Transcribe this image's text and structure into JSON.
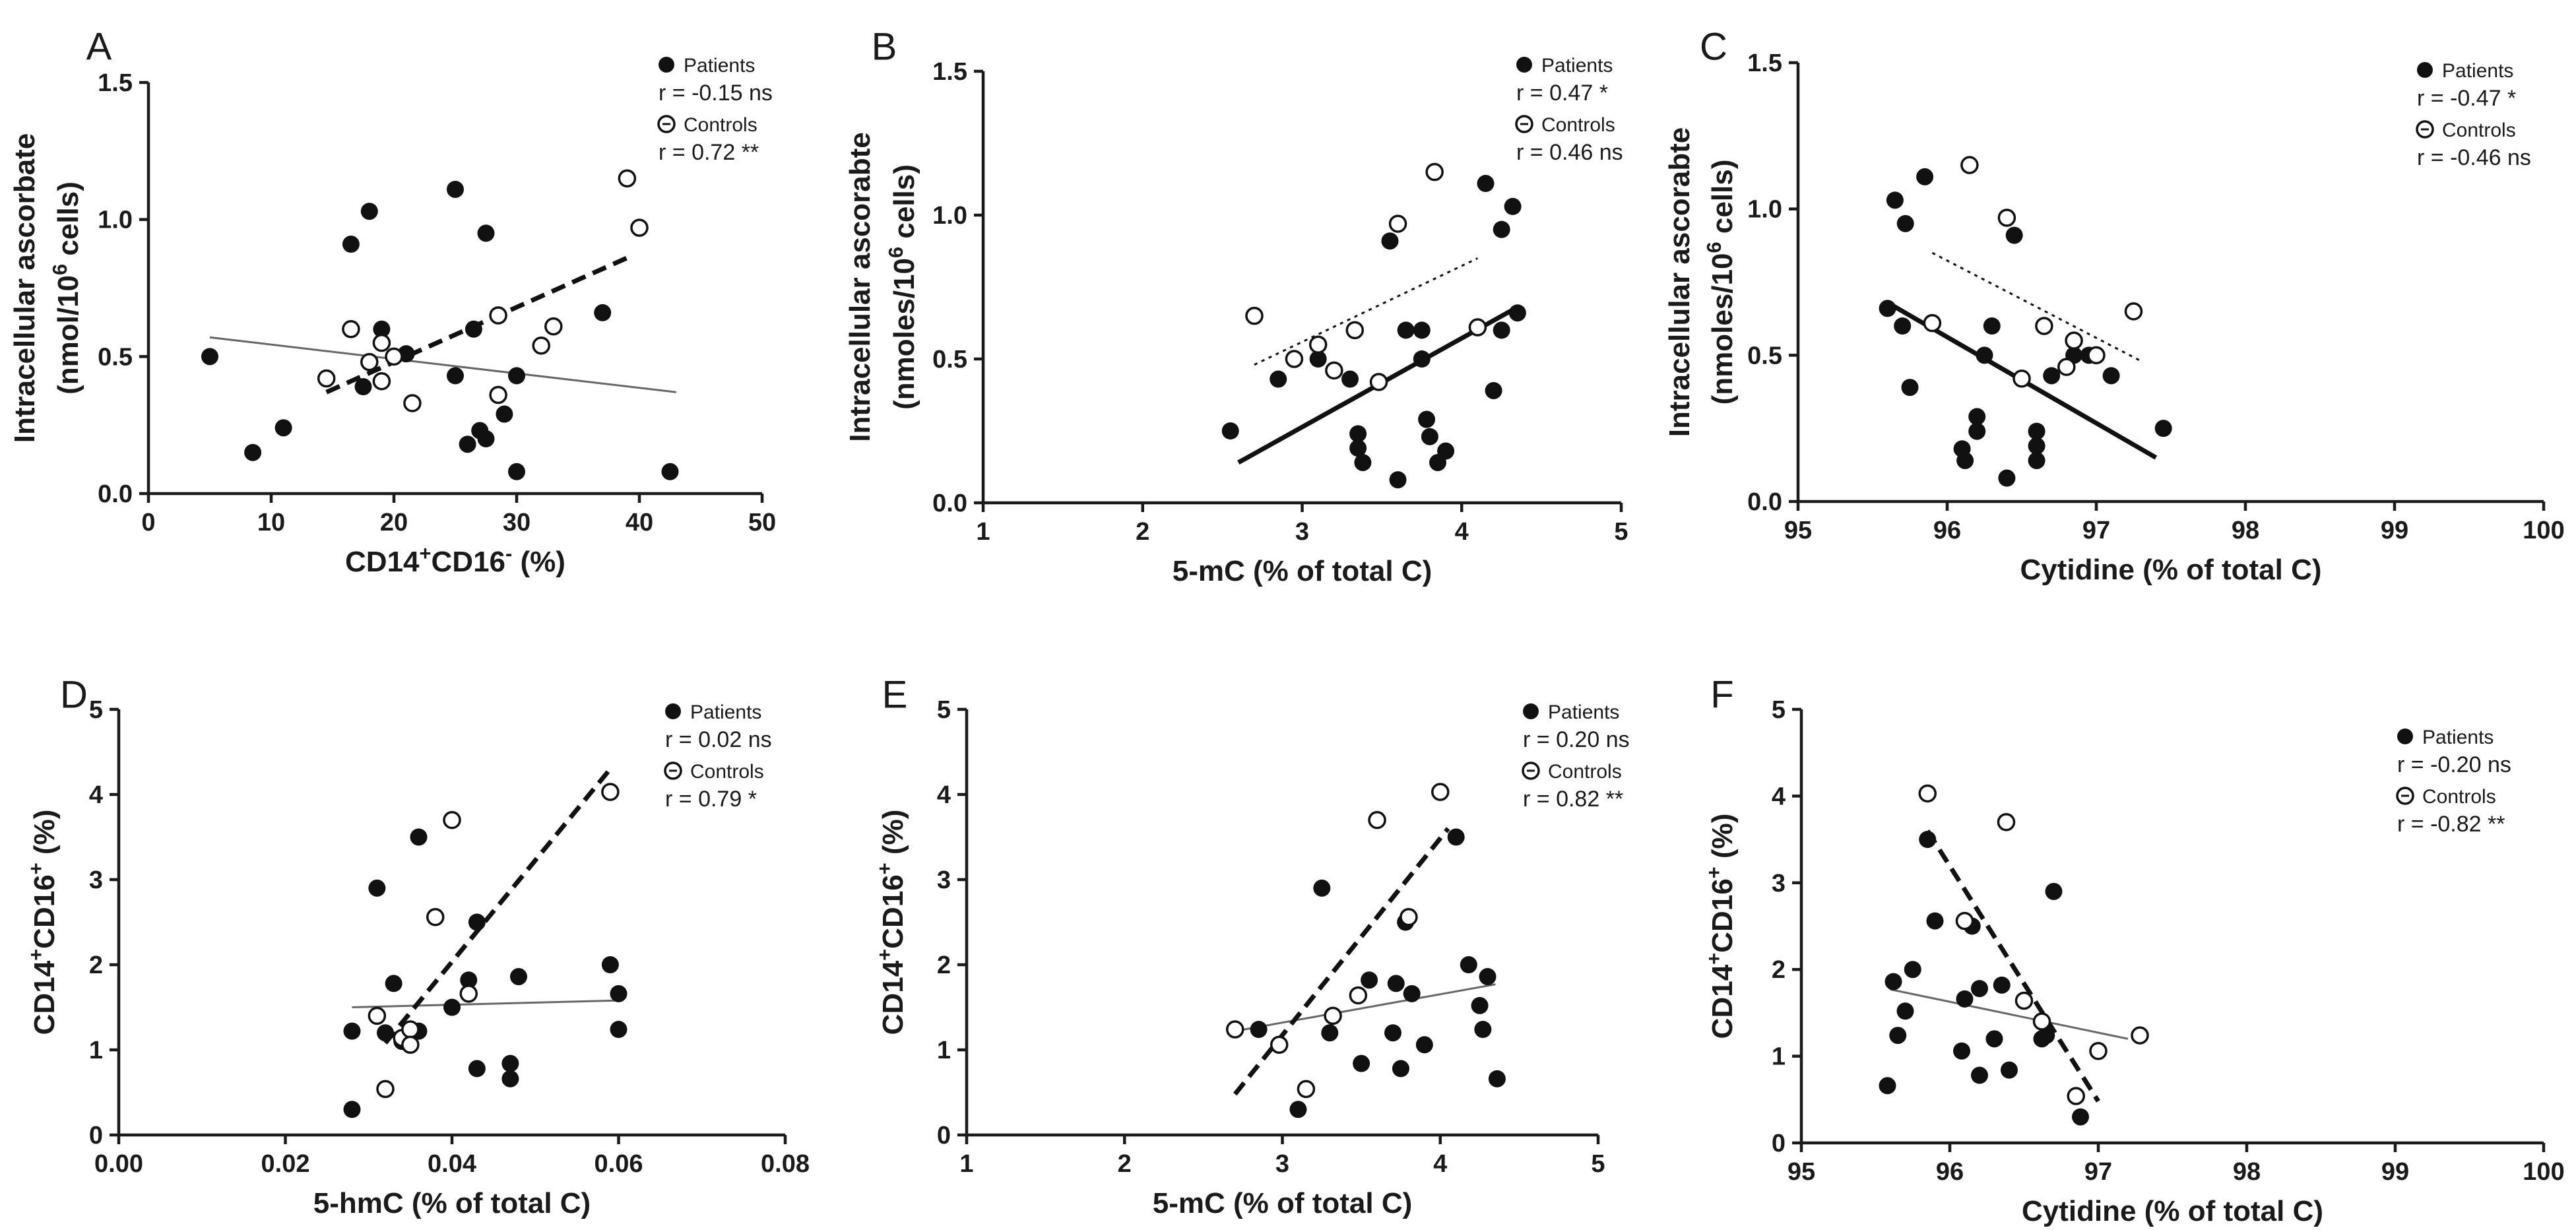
{
  "panels": [
    {
      "letter": "A",
      "xlabel": "CD14+CD16- (%)",
      "xlabel_parts": [
        [
          "CD14",
          ""
        ],
        [
          "+",
          "sup"
        ],
        [
          "CD16",
          ""
        ],
        [
          "-",
          "sup"
        ],
        [
          " (%)",
          ""
        ]
      ],
      "ylabel_line1": "Intracellular ascorbate",
      "ylabel_line2_parts": [
        [
          "(nmol/10",
          ""
        ],
        [
          "6",
          "sup"
        ],
        [
          " cells)",
          ""
        ]
      ],
      "xlim": [
        0,
        50
      ],
      "xticks": [
        0,
        10,
        20,
        30,
        40,
        50
      ],
      "xtick_labels": [
        "0",
        "10",
        "20",
        "30",
        "40",
        "50"
      ],
      "ylim": [
        0,
        1.5
      ],
      "yticks": [
        0.0,
        0.5,
        1.0,
        1.5
      ],
      "ytick_labels": [
        "0.0",
        "0.5",
        "1.0",
        "1.5"
      ],
      "legend": {
        "patients_label": "Patients",
        "patients_r": "r = -0.15 ns",
        "controls_label": "Controls",
        "controls_r": "r = 0.72 **"
      },
      "patients": [
        [
          5,
          0.5
        ],
        [
          8.5,
          0.15
        ],
        [
          11,
          0.24
        ],
        [
          16.5,
          0.91
        ],
        [
          17.5,
          0.39
        ],
        [
          18,
          1.03
        ],
        [
          19,
          0.6
        ],
        [
          21,
          0.51
        ],
        [
          25,
          0.43
        ],
        [
          25,
          1.11
        ],
        [
          26,
          0.18
        ],
        [
          26.5,
          0.6
        ],
        [
          27,
          0.23
        ],
        [
          27.5,
          0.2
        ],
        [
          27.5,
          0.95
        ],
        [
          29,
          0.29
        ],
        [
          30,
          0.43
        ],
        [
          30,
          0.08
        ],
        [
          37,
          0.66
        ],
        [
          42.5,
          0.08
        ]
      ],
      "controls": [
        [
          14.5,
          0.42
        ],
        [
          16.5,
          0.6
        ],
        [
          18,
          0.48
        ],
        [
          19,
          0.41
        ],
        [
          19,
          0.55
        ],
        [
          20,
          0.5
        ],
        [
          21.5,
          0.33
        ],
        [
          28.5,
          0.36
        ],
        [
          28.5,
          0.65
        ],
        [
          32,
          0.54
        ],
        [
          33,
          0.61
        ],
        [
          39,
          1.15
        ],
        [
          40,
          0.97
        ]
      ],
      "patients_fit": [
        [
          5,
          0.57
        ],
        [
          43,
          0.37
        ]
      ],
      "controls_fit": [
        [
          14.5,
          0.37
        ],
        [
          39,
          0.86
        ]
      ]
    },
    {
      "letter": "B",
      "xlabel": "5-mC (% of total C)",
      "xlabel_parts": [
        [
          "5-mC (% of total C)",
          ""
        ]
      ],
      "ylabel_line1": "Intracellular ascorabte",
      "ylabel_line2_parts": [
        [
          "(nmoles/10",
          ""
        ],
        [
          "6",
          "sup"
        ],
        [
          " cells)",
          ""
        ]
      ],
      "xlim": [
        1,
        5
      ],
      "xticks": [
        1,
        2,
        3,
        4,
        5
      ],
      "xtick_labels": [
        "1",
        "2",
        "3",
        "4",
        "5"
      ],
      "ylim": [
        0,
        1.5
      ],
      "yticks": [
        0.0,
        0.5,
        1.0,
        1.5
      ],
      "ytick_labels": [
        "0.0",
        "0.5",
        "1.0",
        "1.5"
      ],
      "legend": {
        "patients_label": "Patients",
        "patients_r": "r = 0.47 *",
        "controls_label": "Controls",
        "controls_r": "r = 0.46 ns"
      },
      "patients": [
        [
          2.55,
          0.25
        ],
        [
          2.85,
          0.43
        ],
        [
          3.1,
          0.5
        ],
        [
          3.3,
          0.43
        ],
        [
          3.35,
          0.24
        ],
        [
          3.35,
          0.19
        ],
        [
          3.38,
          0.14
        ],
        [
          3.55,
          0.91
        ],
        [
          3.6,
          0.08
        ],
        [
          3.65,
          0.6
        ],
        [
          3.75,
          0.6
        ],
        [
          3.75,
          0.5
        ],
        [
          3.78,
          0.29
        ],
        [
          3.8,
          0.23
        ],
        [
          3.85,
          0.14
        ],
        [
          3.9,
          0.18
        ],
        [
          4.15,
          1.11
        ],
        [
          4.2,
          0.39
        ],
        [
          4.25,
          0.95
        ],
        [
          4.25,
          0.6
        ],
        [
          4.32,
          1.03
        ],
        [
          4.35,
          0.66
        ]
      ],
      "controls": [
        [
          2.7,
          0.65
        ],
        [
          2.95,
          0.5
        ],
        [
          3.1,
          0.55
        ],
        [
          3.2,
          0.46
        ],
        [
          3.33,
          0.6
        ],
        [
          3.48,
          0.42
        ],
        [
          3.6,
          0.97
        ],
        [
          3.83,
          1.15
        ],
        [
          4.1,
          0.61
        ]
      ],
      "patients_fit": [
        [
          2.6,
          0.14
        ],
        [
          4.35,
          0.68
        ]
      ],
      "controls_fit": [
        [
          2.7,
          0.48
        ],
        [
          4.1,
          0.85
        ]
      ]
    },
    {
      "letter": "C",
      "xlabel": "Cytidine (% of total C)",
      "xlabel_parts": [
        [
          "Cytidine (% of total C)",
          ""
        ]
      ],
      "ylabel_line1": "Intracellular ascorabte",
      "ylabel_line2_parts": [
        [
          "(nmoles/10",
          ""
        ],
        [
          "6",
          "sup"
        ],
        [
          " cells)",
          ""
        ]
      ],
      "xlim": [
        95,
        100
      ],
      "xticks": [
        95,
        96,
        97,
        98,
        99,
        100
      ],
      "xtick_labels": [
        "95",
        "96",
        "97",
        "98",
        "99",
        "100"
      ],
      "ylim": [
        0,
        1.5
      ],
      "yticks": [
        0.0,
        0.5,
        1.0,
        1.5
      ],
      "ytick_labels": [
        "0.0",
        "0.5",
        "1.0",
        "1.5"
      ],
      "legend": {
        "patients_label": "Patients",
        "patients_r": "r = -0.47 *",
        "controls_label": "Controls",
        "controls_r": "r = -0.46 ns"
      },
      "patients": [
        [
          95.6,
          0.66
        ],
        [
          95.65,
          1.03
        ],
        [
          95.7,
          0.6
        ],
        [
          95.72,
          0.95
        ],
        [
          95.75,
          0.39
        ],
        [
          95.85,
          1.11
        ],
        [
          96.1,
          0.18
        ],
        [
          96.12,
          0.14
        ],
        [
          96.2,
          0.24
        ],
        [
          96.2,
          0.29
        ],
        [
          96.25,
          0.5
        ],
        [
          96.3,
          0.6
        ],
        [
          96.4,
          0.08
        ],
        [
          96.45,
          0.91
        ],
        [
          96.6,
          0.24
        ],
        [
          96.6,
          0.19
        ],
        [
          96.6,
          0.14
        ],
        [
          96.7,
          0.43
        ],
        [
          96.85,
          0.5
        ],
        [
          96.95,
          0.5
        ],
        [
          97.1,
          0.43
        ],
        [
          97.45,
          0.25
        ]
      ],
      "controls": [
        [
          95.9,
          0.61
        ],
        [
          96.15,
          1.15
        ],
        [
          96.4,
          0.97
        ],
        [
          96.5,
          0.42
        ],
        [
          96.65,
          0.6
        ],
        [
          96.8,
          0.46
        ],
        [
          96.85,
          0.55
        ],
        [
          97.0,
          0.5
        ],
        [
          97.25,
          0.65
        ]
      ],
      "patients_fit": [
        [
          95.6,
          0.68
        ],
        [
          97.4,
          0.15
        ]
      ],
      "controls_fit": [
        [
          95.9,
          0.85
        ],
        [
          97.3,
          0.48
        ]
      ]
    },
    {
      "letter": "D",
      "xlabel": "5-hmC (% of total C)",
      "xlabel_parts": [
        [
          "5-hmC (% of total C)",
          ""
        ]
      ],
      "ylabel_line1": "",
      "ylabel_line2_parts": [
        [
          "CD14",
          ""
        ],
        [
          "+",
          "sup"
        ],
        [
          "CD16",
          ""
        ],
        [
          "+",
          "sup"
        ],
        [
          " (%)",
          ""
        ]
      ],
      "xlim": [
        0,
        0.08
      ],
      "xticks": [
        0,
        0.02,
        0.04,
        0.06,
        0.08
      ],
      "xtick_labels": [
        "0.00",
        "0.02",
        "0.04",
        "0.06",
        "0.08"
      ],
      "ylim": [
        0,
        5
      ],
      "yticks": [
        0,
        1,
        2,
        3,
        4,
        5
      ],
      "ytick_labels": [
        "0",
        "1",
        "2",
        "3",
        "4",
        "5"
      ],
      "legend": {
        "patients_label": "Patients",
        "patients_r": "r = 0.02 ns",
        "controls_label": "Controls",
        "controls_r": "r = 0.79 *"
      },
      "patients": [
        [
          0.028,
          0.3
        ],
        [
          0.028,
          1.22
        ],
        [
          0.031,
          2.9
        ],
        [
          0.032,
          1.2
        ],
        [
          0.033,
          1.78
        ],
        [
          0.034,
          1.1
        ],
        [
          0.035,
          1.18
        ],
        [
          0.036,
          3.5
        ],
        [
          0.036,
          1.22
        ],
        [
          0.04,
          1.5
        ],
        [
          0.042,
          1.82
        ],
        [
          0.043,
          2.5
        ],
        [
          0.043,
          0.78
        ],
        [
          0.047,
          0.84
        ],
        [
          0.047,
          0.66
        ],
        [
          0.048,
          1.86
        ],
        [
          0.059,
          2.0
        ],
        [
          0.06,
          1.24
        ],
        [
          0.06,
          1.66
        ]
      ],
      "controls": [
        [
          0.031,
          1.4
        ],
        [
          0.032,
          0.54
        ],
        [
          0.034,
          1.14
        ],
        [
          0.035,
          1.24
        ],
        [
          0.035,
          1.06
        ],
        [
          0.038,
          2.56
        ],
        [
          0.04,
          3.7
        ],
        [
          0.042,
          1.66
        ],
        [
          0.059,
          4.03
        ]
      ],
      "patients_fit": [
        [
          0.028,
          1.5
        ],
        [
          0.06,
          1.58
        ]
      ],
      "controls_fit": [
        [
          0.032,
          1.08
        ],
        [
          0.059,
          4.3
        ]
      ]
    },
    {
      "letter": "E",
      "xlabel": "5-mC (% of total C)",
      "xlabel_parts": [
        [
          "5-mC (% of total C)",
          ""
        ]
      ],
      "ylabel_line1": "",
      "ylabel_line2_parts": [
        [
          "CD14",
          ""
        ],
        [
          "+",
          "sup"
        ],
        [
          "CD16",
          ""
        ],
        [
          "+",
          "sup"
        ],
        [
          " (%)",
          ""
        ]
      ],
      "xlim": [
        1,
        5
      ],
      "xticks": [
        1,
        2,
        3,
        4,
        5
      ],
      "xtick_labels": [
        "1",
        "2",
        "3",
        "4",
        "5"
      ],
      "ylim": [
        0,
        5
      ],
      "yticks": [
        0,
        1,
        2,
        3,
        4,
        5
      ],
      "ytick_labels": [
        "0",
        "1",
        "2",
        "3",
        "4",
        "5"
      ],
      "legend": {
        "patients_label": "Patients",
        "patients_r": "r = 0.20 ns",
        "controls_label": "Controls",
        "controls_r": "r = 0.82 **"
      },
      "patients": [
        [
          2.85,
          1.24
        ],
        [
          3.1,
          0.3
        ],
        [
          3.25,
          2.9
        ],
        [
          3.3,
          1.2
        ],
        [
          3.5,
          0.84
        ],
        [
          3.55,
          1.82
        ],
        [
          3.7,
          1.2
        ],
        [
          3.72,
          1.78
        ],
        [
          3.75,
          0.78
        ],
        [
          3.78,
          2.5
        ],
        [
          3.82,
          1.66
        ],
        [
          3.9,
          1.06
        ],
        [
          4.1,
          3.5
        ],
        [
          4.18,
          2.0
        ],
        [
          4.25,
          1.52
        ],
        [
          4.27,
          1.24
        ],
        [
          4.3,
          1.86
        ],
        [
          4.36,
          0.66
        ]
      ],
      "controls": [
        [
          2.7,
          1.24
        ],
        [
          2.98,
          1.06
        ],
        [
          3.15,
          0.54
        ],
        [
          3.32,
          1.4
        ],
        [
          3.48,
          1.64
        ],
        [
          3.6,
          3.7
        ],
        [
          3.8,
          2.56
        ],
        [
          4.0,
          4.03
        ]
      ],
      "patients_fit": [
        [
          2.7,
          1.22
        ],
        [
          4.35,
          1.77
        ]
      ],
      "controls_fit": [
        [
          2.7,
          0.48
        ],
        [
          4.05,
          3.6
        ]
      ]
    },
    {
      "letter": "F",
      "xlabel": "Cytidine (% of total C)",
      "xlabel_parts": [
        [
          "Cytidine (% of total C)",
          ""
        ]
      ],
      "ylabel_line1": "",
      "ylabel_line2_parts": [
        [
          "CD14",
          ""
        ],
        [
          "+",
          "sup"
        ],
        [
          "CD16",
          ""
        ],
        [
          "+",
          "sup"
        ],
        [
          " (%)",
          ""
        ]
      ],
      "xlim": [
        95,
        100
      ],
      "xticks": [
        95,
        96,
        97,
        98,
        99,
        100
      ],
      "xtick_labels": [
        "95",
        "96",
        "97",
        "98",
        "99",
        "100"
      ],
      "ylim": [
        0,
        5
      ],
      "yticks": [
        0,
        1,
        2,
        3,
        4,
        5
      ],
      "ytick_labels": [
        "0",
        "1",
        "2",
        "3",
        "4",
        "5"
      ],
      "legend": {
        "patients_label": "Patients",
        "patients_r": "r = -0.20 ns",
        "controls_label": "Controls",
        "controls_r": "r = -0.82 **"
      },
      "patients": [
        [
          95.58,
          0.66
        ],
        [
          95.62,
          1.86
        ],
        [
          95.65,
          1.24
        ],
        [
          95.7,
          1.52
        ],
        [
          95.75,
          2.0
        ],
        [
          95.85,
          3.5
        ],
        [
          95.9,
          2.56
        ],
        [
          96.08,
          1.06
        ],
        [
          96.1,
          1.66
        ],
        [
          96.15,
          2.5
        ],
        [
          96.2,
          0.78
        ],
        [
          96.2,
          1.78
        ],
        [
          96.3,
          1.2
        ],
        [
          96.35,
          1.82
        ],
        [
          96.4,
          0.84
        ],
        [
          96.62,
          1.2
        ],
        [
          96.65,
          1.24
        ],
        [
          96.7,
          2.9
        ],
        [
          96.88,
          0.3
        ]
      ],
      "controls": [
        [
          95.85,
          4.03
        ],
        [
          96.1,
          2.56
        ],
        [
          96.38,
          3.7
        ],
        [
          96.5,
          1.64
        ],
        [
          96.62,
          1.4
        ],
        [
          96.85,
          0.54
        ],
        [
          97.0,
          1.06
        ],
        [
          97.28,
          1.24
        ]
      ],
      "patients_fit": [
        [
          95.6,
          1.77
        ],
        [
          97.2,
          1.2
        ]
      ],
      "controls_fit": [
        [
          95.85,
          3.6
        ],
        [
          97.0,
          0.48
        ]
      ]
    }
  ]
}
